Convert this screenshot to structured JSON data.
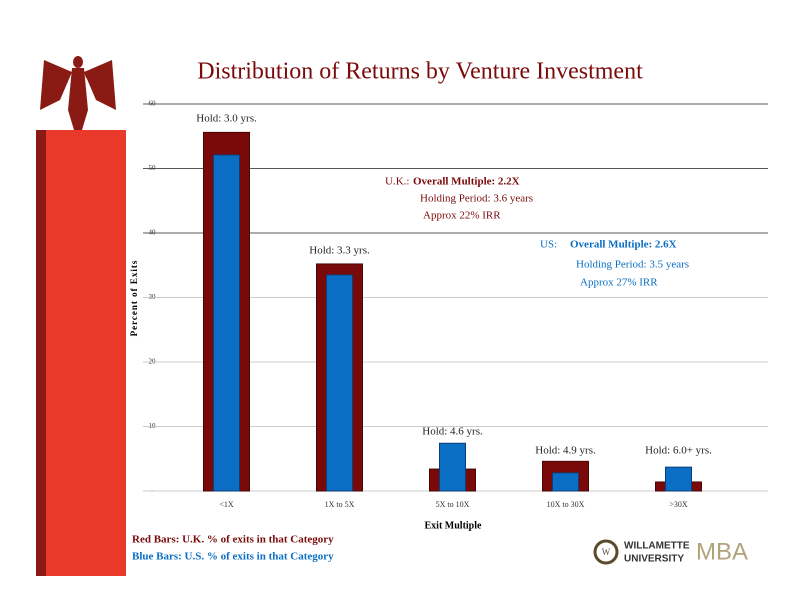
{
  "chart_data": {
    "type": "bar",
    "title": "Distribution of Returns by Venture Investment",
    "categories": [
      "<1X",
      "1X to 5X",
      "5X to 10X",
      "10X to 30X",
      ">30X"
    ],
    "series": [
      {
        "name": "Red Bars: U.K. % of exits in that Category",
        "color": "#7a0a0a",
        "values": [
          55.6,
          35.2,
          3.4,
          4.6,
          1.4
        ]
      },
      {
        "name": "Blue Bars: U.S. % of exits in that Category",
        "color": "#0a6ec4",
        "values": [
          52.1,
          33.5,
          7.4,
          2.8,
          3.7
        ]
      }
    ],
    "ylim": [
      0,
      60
    ],
    "yticks": [
      {
        "value": 0,
        "label": "-"
      },
      10,
      20,
      30,
      40,
      50,
      60
    ],
    "grid": true,
    "y_label": "Percent of Exits",
    "x_label": "Exit Multiple",
    "annotations": [
      "Hold: 3.0 yrs.",
      "Hold: 3.3 yrs.",
      "Hold: 4.6 yrs.",
      "Hold: 4.9 yrs.",
      "Hold: 6.0+ yrs."
    ],
    "uk_summary": {
      "label": "U.K.:",
      "multiple": "Overall Multiple: 2.2X",
      "holding": "Holding Period: 3.6 years",
      "irr": "Approx 22% IRR"
    },
    "us_summary": {
      "label": "US:",
      "multiple": "Overall Multiple: 2.6X",
      "holding": "Holding Period: 3.5 years",
      "irr": "Approx 27% IRR"
    }
  },
  "logo": {
    "line1": "WILLAMETTE",
    "line2": "UNIVERSITY",
    "suffix": "MBA"
  }
}
